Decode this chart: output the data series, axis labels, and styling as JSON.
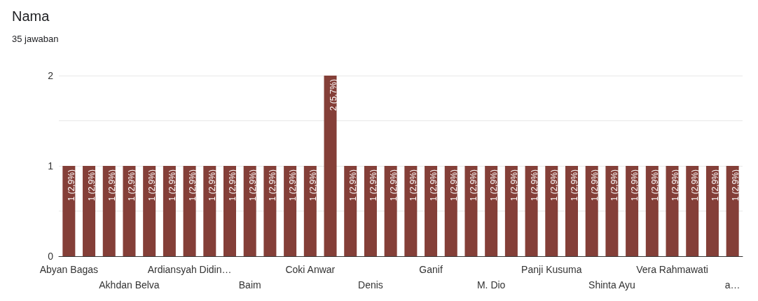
{
  "chart_data": {
    "type": "bar",
    "title": "Nama",
    "subtitle": "35 jawaban",
    "categories": [
      "Abyan Bagas",
      null,
      null,
      "Akhdan Belva",
      null,
      null,
      "Ardiansyah Didin…",
      null,
      null,
      "Baim",
      null,
      null,
      "Coki Anwar",
      null,
      null,
      "Denis",
      null,
      null,
      "Ganif",
      null,
      null,
      "M. Dio",
      null,
      null,
      "Panji Kusuma",
      null,
      null,
      "Shinta Ayu",
      null,
      null,
      "Vera Rahmawati",
      null,
      null,
      "a…"
    ],
    "values": [
      1,
      1,
      1,
      1,
      1,
      1,
      1,
      1,
      1,
      1,
      1,
      1,
      1,
      2,
      1,
      1,
      1,
      1,
      1,
      1,
      1,
      1,
      1,
      1,
      1,
      1,
      1,
      1,
      1,
      1,
      1,
      1,
      1,
      1
    ],
    "value_labels": [
      "1 (2,9%)",
      "1 (2,9%)",
      "1 (2,9%)",
      "1 (2,9%)",
      "1 (2,9%)",
      "1 (2,9%)",
      "1 (2,9%)",
      "1 (2,9%)",
      "1 (2,9%)",
      "1 (2,9%)",
      "1 (2,9%)",
      "1 (2,9%)",
      "1 (2,9%)",
      "2 (5,7%)",
      "1 (2,9%)",
      "1 (2,9%)",
      "1 (2,9%)",
      "1 (2,9%)",
      "1 (2,9%)",
      "1 (2,9%)",
      "1 (2,9%)",
      "1 (2,9%)",
      "1 (2,9%)",
      "1 (2,9%)",
      "1 (2,9%)",
      "1 (2,9%)",
      "1 (2,9%)",
      "1 (2,9%)",
      "1 (2,9%)",
      "1 (2,9%)",
      "1 (2,9%)",
      "1 (2,9%)",
      "1 (2,9%)",
      "1 (2,9%)"
    ],
    "color": "#843f38",
    "ylim": [
      0,
      2
    ],
    "yticks": [
      0,
      {
        "value": 0.5,
        "label": null
      },
      1,
      {
        "value": 1.5,
        "label": null
      },
      2
    ],
    "grid": true
  }
}
